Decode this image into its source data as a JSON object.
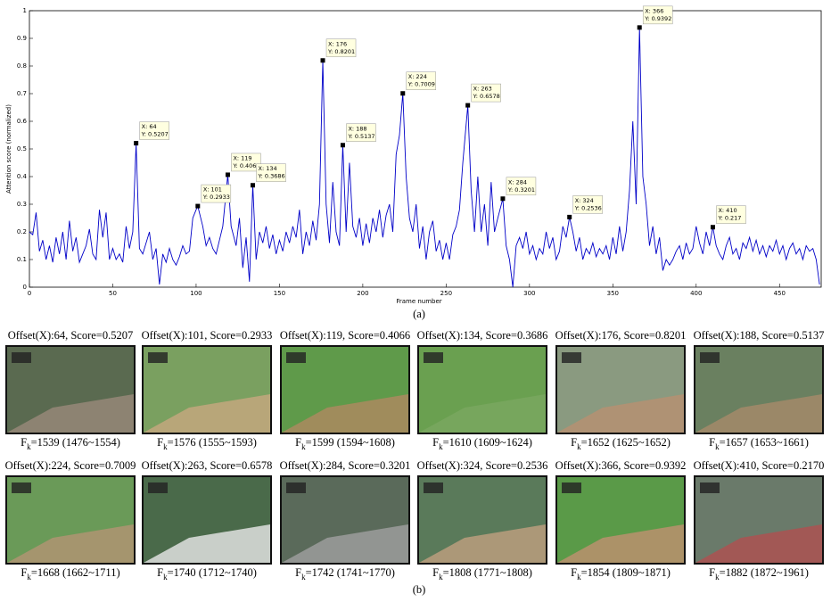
{
  "chart_data": {
    "type": "line",
    "xlabel": "Frame number",
    "ylabel": "Attention score (normalized)",
    "caption": "(a)",
    "xlim": [
      0,
      475
    ],
    "ylim": [
      0,
      1
    ],
    "xticks": [
      0,
      50,
      100,
      150,
      200,
      250,
      300,
      350,
      400,
      450
    ],
    "yticks": [
      0,
      0.1,
      0.2,
      0.3,
      0.4,
      0.5,
      0.6,
      0.7,
      0.8,
      0.9,
      1
    ],
    "color": "#0000c8",
    "x": [
      0,
      2,
      4,
      6,
      8,
      10,
      12,
      14,
      16,
      18,
      20,
      22,
      24,
      26,
      28,
      30,
      32,
      34,
      36,
      38,
      40,
      42,
      44,
      46,
      48,
      50,
      52,
      54,
      56,
      58,
      60,
      62,
      64,
      66,
      68,
      70,
      72,
      74,
      76,
      78,
      80,
      82,
      84,
      86,
      88,
      90,
      92,
      94,
      96,
      98,
      100,
      101,
      104,
      106,
      108,
      110,
      112,
      114,
      116,
      119,
      121,
      124,
      126,
      128,
      130,
      132,
      134,
      136,
      138,
      140,
      142,
      144,
      146,
      148,
      150,
      152,
      154,
      156,
      158,
      160,
      162,
      164,
      166,
      168,
      170,
      172,
      174,
      176,
      178,
      180,
      182,
      184,
      186,
      188,
      190,
      192,
      194,
      196,
      198,
      200,
      202,
      204,
      206,
      208,
      210,
      212,
      214,
      216,
      218,
      220,
      222,
      224,
      226,
      228,
      230,
      232,
      234,
      236,
      238,
      240,
      242,
      244,
      246,
      248,
      250,
      252,
      254,
      256,
      258,
      260,
      263,
      265,
      267,
      269,
      271,
      273,
      275,
      277,
      279,
      281,
      284,
      286,
      288,
      290,
      292,
      294,
      296,
      298,
      300,
      302,
      304,
      306,
      308,
      310,
      312,
      314,
      316,
      318,
      320,
      322,
      324,
      326,
      328,
      330,
      332,
      334,
      336,
      338,
      340,
      342,
      344,
      346,
      348,
      350,
      352,
      354,
      356,
      358,
      360,
      362,
      364,
      366,
      368,
      370,
      372,
      374,
      376,
      378,
      380,
      382,
      384,
      386,
      388,
      390,
      392,
      394,
      396,
      398,
      400,
      402,
      404,
      406,
      408,
      410,
      412,
      414,
      416,
      418,
      420,
      422,
      424,
      426,
      428,
      430,
      432,
      434,
      436,
      438,
      440,
      442,
      444,
      446,
      448,
      450,
      452,
      454,
      456,
      458,
      460,
      462,
      464,
      466,
      468,
      470,
      472,
      474
    ],
    "values": [
      0.2,
      0.19,
      0.27,
      0.13,
      0.17,
      0.1,
      0.15,
      0.09,
      0.18,
      0.12,
      0.2,
      0.1,
      0.24,
      0.13,
      0.18,
      0.09,
      0.12,
      0.15,
      0.21,
      0.12,
      0.1,
      0.28,
      0.18,
      0.27,
      0.1,
      0.14,
      0.1,
      0.12,
      0.09,
      0.22,
      0.14,
      0.2,
      0.5207,
      0.14,
      0.12,
      0.16,
      0.2,
      0.1,
      0.14,
      0.01,
      0.12,
      0.09,
      0.14,
      0.1,
      0.08,
      0.11,
      0.15,
      0.12,
      0.13,
      0.25,
      0.28,
      0.2933,
      0.22,
      0.15,
      0.18,
      0.14,
      0.12,
      0.17,
      0.22,
      0.4066,
      0.22,
      0.15,
      0.25,
      0.07,
      0.18,
      0.02,
      0.3686,
      0.1,
      0.2,
      0.16,
      0.22,
      0.14,
      0.19,
      0.12,
      0.17,
      0.13,
      0.2,
      0.16,
      0.22,
      0.18,
      0.28,
      0.12,
      0.2,
      0.15,
      0.24,
      0.17,
      0.3,
      0.8201,
      0.3,
      0.16,
      0.38,
      0.2,
      0.15,
      0.5137,
      0.2,
      0.45,
      0.22,
      0.18,
      0.25,
      0.15,
      0.23,
      0.16,
      0.25,
      0.2,
      0.28,
      0.18,
      0.26,
      0.3,
      0.2,
      0.48,
      0.55,
      0.7009,
      0.4,
      0.25,
      0.2,
      0.3,
      0.14,
      0.22,
      0.1,
      0.2,
      0.24,
      0.13,
      0.17,
      0.1,
      0.16,
      0.1,
      0.19,
      0.22,
      0.28,
      0.45,
      0.6578,
      0.35,
      0.2,
      0.4,
      0.2,
      0.3,
      0.15,
      0.38,
      0.2,
      0.25,
      0.3201,
      0.15,
      0.1,
      0.0,
      0.15,
      0.18,
      0.14,
      0.2,
      0.12,
      0.15,
      0.1,
      0.14,
      0.12,
      0.2,
      0.14,
      0.18,
      0.1,
      0.13,
      0.22,
      0.18,
      0.2536,
      0.2,
      0.13,
      0.18,
      0.1,
      0.14,
      0.12,
      0.16,
      0.11,
      0.14,
      0.12,
      0.15,
      0.1,
      0.18,
      0.12,
      0.22,
      0.13,
      0.2,
      0.35,
      0.6,
      0.3,
      0.9392,
      0.4,
      0.3,
      0.15,
      0.22,
      0.12,
      0.18,
      0.06,
      0.1,
      0.08,
      0.1,
      0.13,
      0.15,
      0.1,
      0.16,
      0.12,
      0.14,
      0.22,
      0.16,
      0.12,
      0.2,
      0.15,
      0.217,
      0.15,
      0.12,
      0.1,
      0.15,
      0.18,
      0.12,
      0.14,
      0.1,
      0.16,
      0.14,
      0.18,
      0.13,
      0.17,
      0.12,
      0.15,
      0.11,
      0.15,
      0.13,
      0.17,
      0.12,
      0.15,
      0.1,
      0.14,
      0.16,
      0.12,
      0.14,
      0.1,
      0.15,
      0.13,
      0.14,
      0.1,
      0.01
    ],
    "datatips": [
      {
        "x": 64,
        "y": 0.5207,
        "text": [
          "X: 64",
          "Y: 0.5207"
        ]
      },
      {
        "x": 101,
        "y": 0.2933,
        "text": [
          "X: 101",
          "Y: 0.2933"
        ]
      },
      {
        "x": 119,
        "y": 0.4066,
        "text": [
          "X: 119",
          "Y: 0.4066"
        ]
      },
      {
        "x": 134,
        "y": 0.3686,
        "text": [
          "X: 134",
          "Y: 0.3686"
        ]
      },
      {
        "x": 176,
        "y": 0.8201,
        "text": [
          "X: 176",
          "Y: 0.8201"
        ]
      },
      {
        "x": 188,
        "y": 0.5137,
        "text": [
          "X: 188",
          "Y: 0.5137"
        ]
      },
      {
        "x": 224,
        "y": 0.7009,
        "text": [
          "X: 224",
          "Y: 0.7009"
        ]
      },
      {
        "x": 263,
        "y": 0.6578,
        "text": [
          "X: 263",
          "Y: 0.6578"
        ]
      },
      {
        "x": 284,
        "y": 0.3201,
        "text": [
          "X: 284",
          "Y: 0.3201"
        ]
      },
      {
        "x": 324,
        "y": 0.2536,
        "text": [
          "X: 324",
          "Y: 0.2536"
        ]
      },
      {
        "x": 366,
        "y": 0.9392,
        "text": [
          "X: 366",
          "Y: 0.9392"
        ]
      },
      {
        "x": 410,
        "y": 0.217,
        "text": [
          "X: 410",
          "Y: 0.217"
        ]
      }
    ]
  },
  "frames": {
    "caption": "(b)",
    "panels": [
      {
        "header": "Offset(X):64, Score=0.5207",
        "sym": "F",
        "sub": "k",
        "footer": "=1539 (1476~1554)"
      },
      {
        "header": "Offset(X):101, Score=0.2933",
        "sym": "F",
        "sub": "k",
        "footer": "=1576 (1555~1593)"
      },
      {
        "header": "Offset(X):119, Score=0.4066",
        "sym": "F",
        "sub": "k",
        "footer": "=1599 (1594~1608)"
      },
      {
        "header": "Offset(X):134, Score=0.3686",
        "sym": "F",
        "sub": "k",
        "footer": "=1610 (1609~1624)"
      },
      {
        "header": "Offset(X):176, Score=0.8201",
        "sym": "F",
        "sub": "k",
        "footer": "=1652 (1625~1652)"
      },
      {
        "header": "Offset(X):188, Score=0.5137",
        "sym": "F",
        "sub": "k",
        "footer": "=1657 (1653~1661)"
      },
      {
        "header": "Offset(X):224, Score=0.7009",
        "sym": "F",
        "sub": "k",
        "footer": "=1668 (1662~1711)"
      },
      {
        "header": "Offset(X):263, Score=0.6578",
        "sym": "F",
        "sub": "k",
        "footer": "=1740 (1712~1740)"
      },
      {
        "header": "Offset(X):284, Score=0.3201",
        "sym": "F",
        "sub": "k",
        "footer": "=1742 (1741~1770)"
      },
      {
        "header": "Offset(X):324, Score=0.2536",
        "sym": "F",
        "sub": "k",
        "footer": "=1808 (1771~1808)"
      },
      {
        "header": "Offset(X):366, Score=0.9392",
        "sym": "F",
        "sub": "k",
        "footer": "=1854 (1809~1871)"
      },
      {
        "header": "Offset(X):410, Score=0.2170",
        "sym": "F",
        "sub": "k",
        "footer": "=1882 (1872~1961)"
      }
    ]
  }
}
